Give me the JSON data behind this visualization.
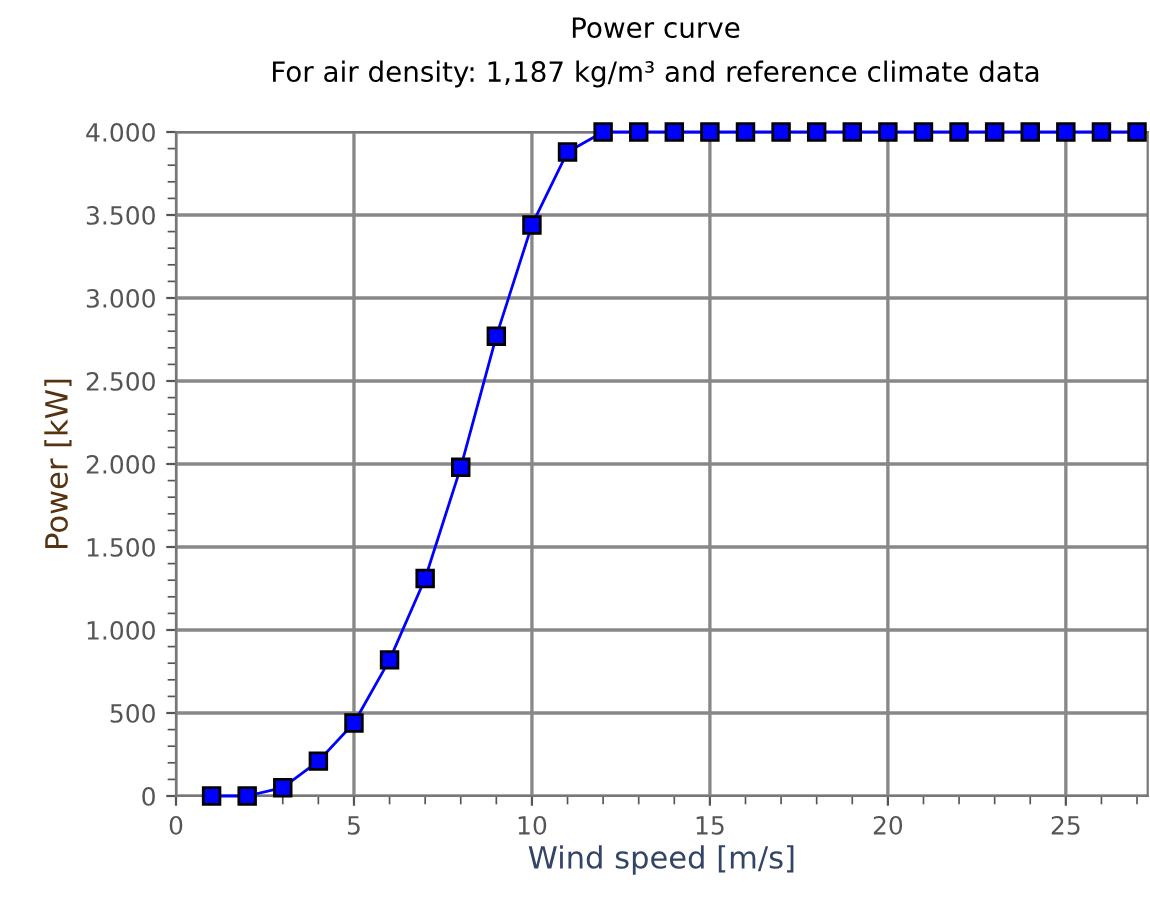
{
  "chart_data": {
    "type": "line",
    "title": "Power curve",
    "subtitle": "For air density: 1,187 kg/m³ and reference climate data",
    "xlabel": "Wind speed [m/s]",
    "ylabel": "Power [kW]",
    "x": [
      1,
      2,
      3,
      4,
      5,
      6,
      7,
      8,
      9,
      10,
      11,
      12,
      13,
      14,
      15,
      16,
      17,
      18,
      19,
      20,
      21,
      22,
      23,
      24,
      25,
      26,
      27
    ],
    "series": [
      {
        "color": "#0000ff",
        "values": [
          0,
          0,
          50,
          210,
          440,
          820,
          1310,
          1980,
          2770,
          3440,
          3880,
          4000,
          4000,
          4000,
          4000,
          4000,
          4000,
          4000,
          4000,
          4000,
          4000,
          4000,
          4000,
          4000,
          4000,
          4000,
          4000
        ]
      }
    ],
    "xlim": [
      0,
      27.3
    ],
    "xticks": [
      0,
      5,
      10,
      15,
      20,
      25
    ],
    "ylim": [
      0,
      4000
    ],
    "yticks": [
      0,
      500,
      {
        "value": 1000,
        "label": "1.000"
      },
      {
        "value": 1500,
        "label": "1.500"
      },
      {
        "value": 2000,
        "label": "2.000"
      },
      {
        "value": 2500,
        "label": "2.500"
      },
      {
        "value": 3000,
        "label": "3.000"
      },
      {
        "value": 3500,
        "label": "3.500"
      },
      {
        "value": 4000,
        "label": "4.000"
      }
    ],
    "grid": true,
    "marker": "square",
    "line_style": "solid"
  }
}
